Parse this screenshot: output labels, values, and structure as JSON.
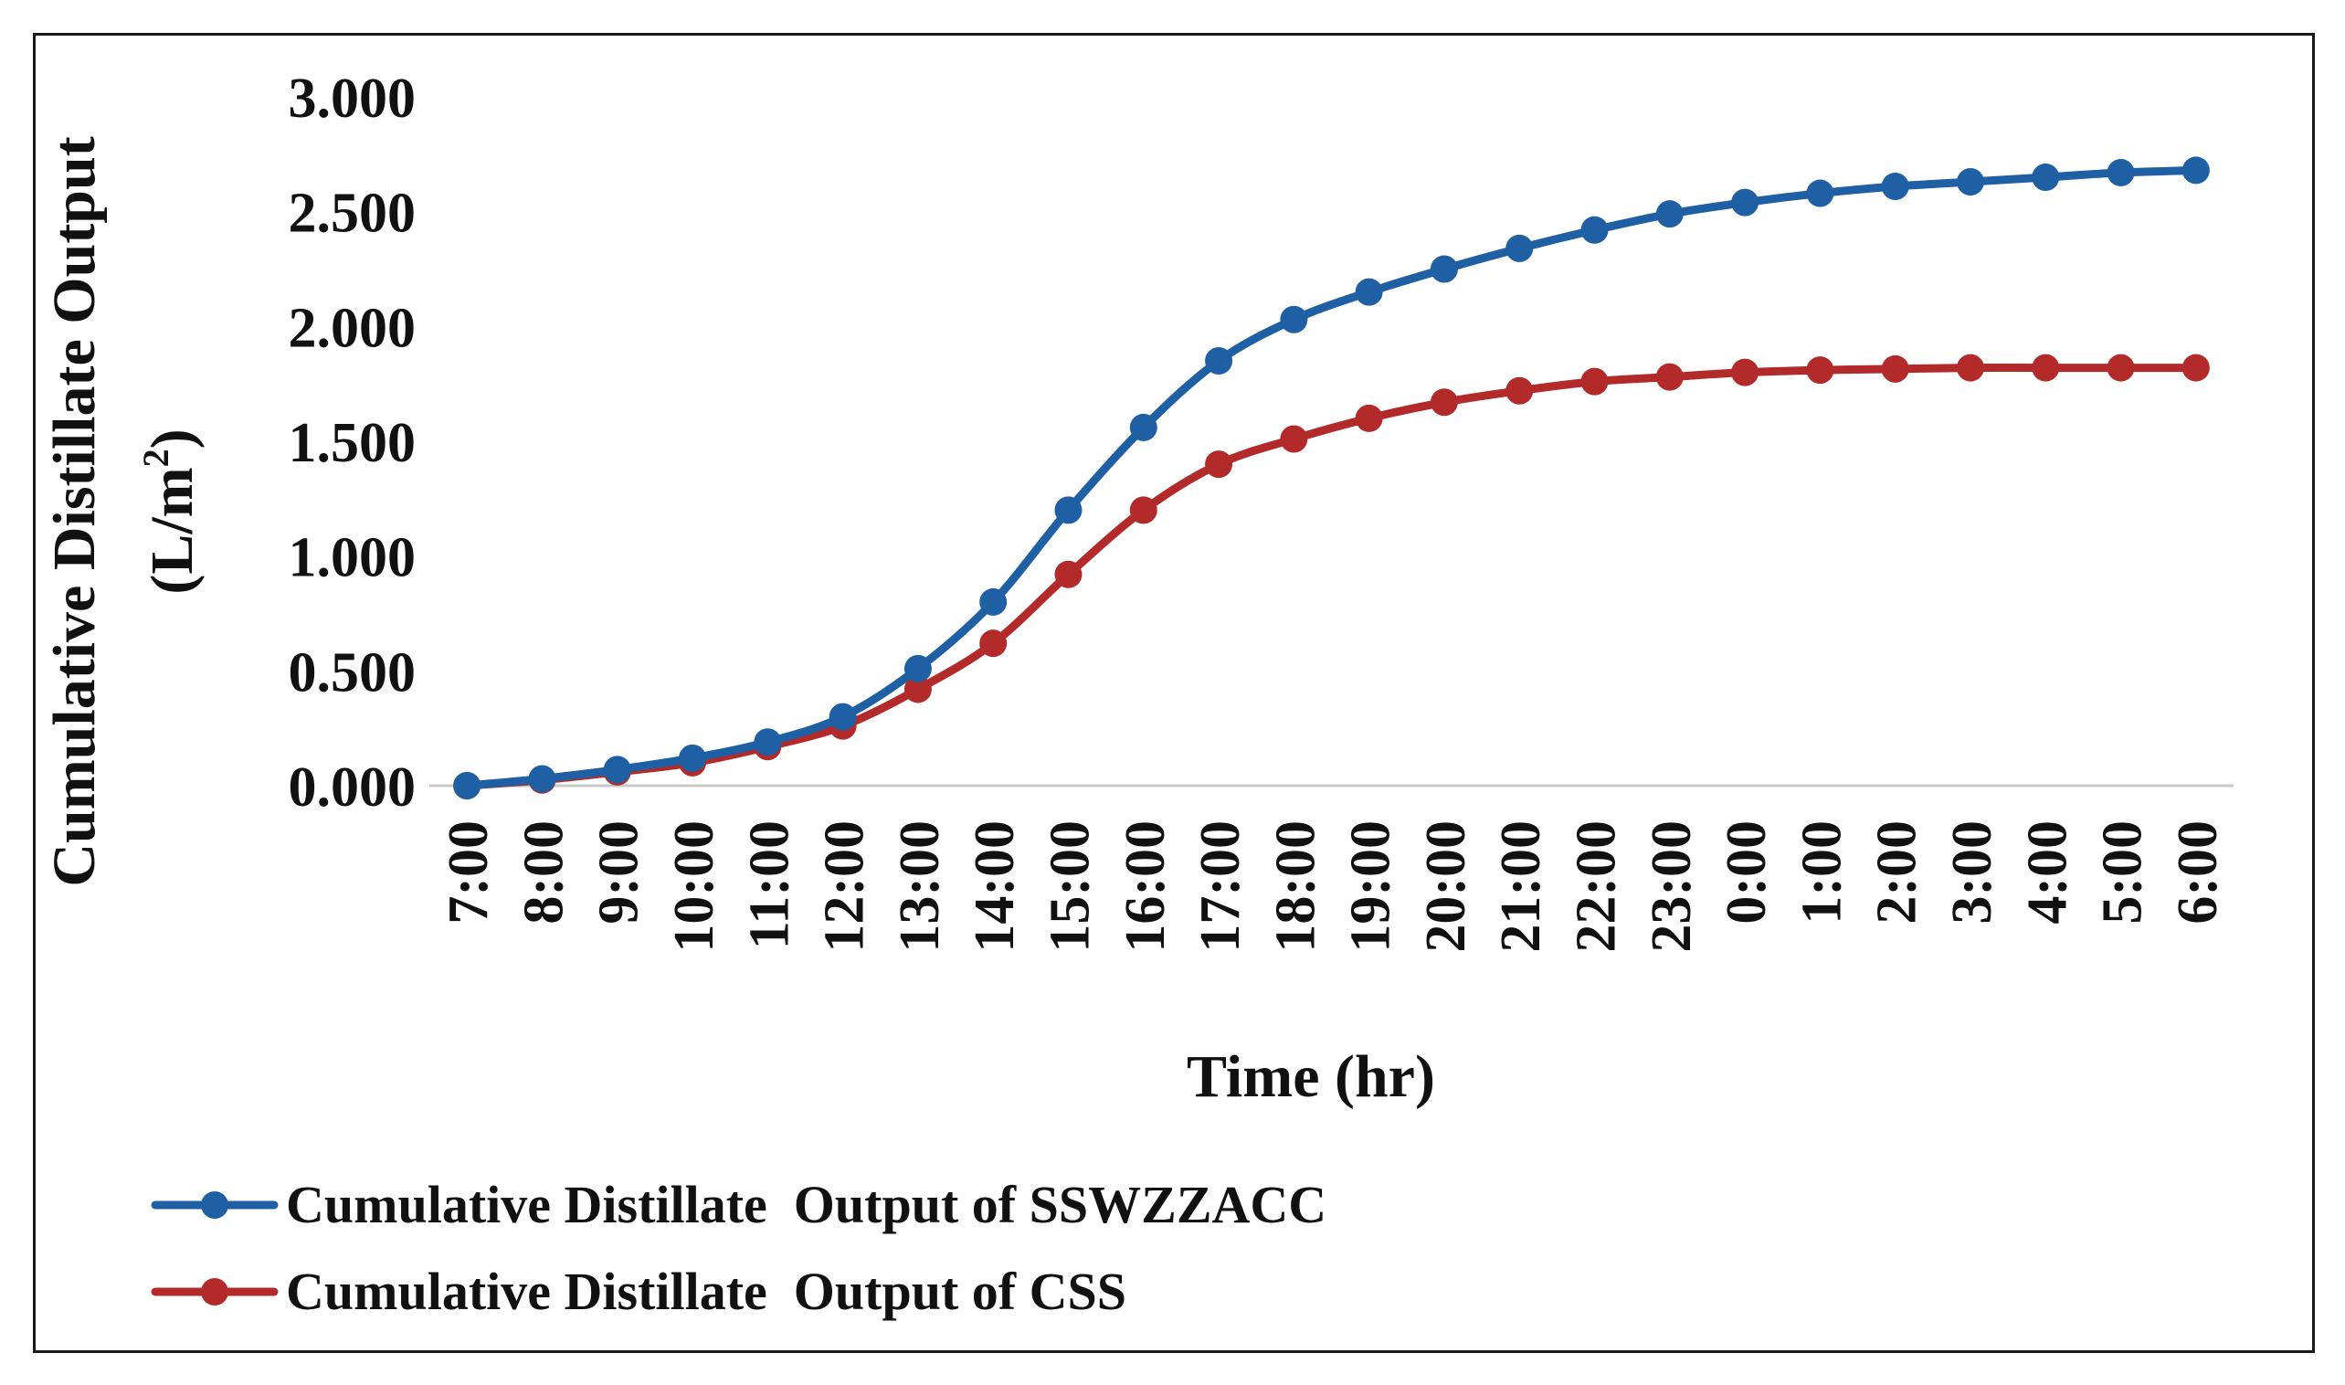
{
  "chart_data": {
    "type": "line",
    "title": "",
    "xlabel": "Time (hr)",
    "ylabel_line1": "Cumulative Distillate Output",
    "ylabel_line2_prefix": "(L/m",
    "ylabel_line2_sup": "2",
    "ylabel_line2_suffix": ")",
    "ylim": [
      0,
      3
    ],
    "yticks": [
      "0.000",
      "0.500",
      "1.000",
      "1.500",
      "2.000",
      "2.500",
      "3.000"
    ],
    "categories": [
      "7:00",
      "8:00",
      "9:00",
      "10:00",
      "11:00",
      "12:00",
      "13:00",
      "14:00",
      "15:00",
      "16:00",
      "17:00",
      "18:00",
      "19:00",
      "20:00",
      "21:00",
      "22:00",
      "23:00",
      "0:00",
      "1:00",
      "2:00",
      "3:00",
      "4:00",
      "5:00",
      "6:00"
    ],
    "series": [
      {
        "name": "Cumulative Distillate  Output of SSWZZACC",
        "color": "#1f5fa4",
        "values": [
          0.0,
          0.03,
          0.07,
          0.12,
          0.19,
          0.3,
          0.51,
          0.8,
          1.2,
          1.56,
          1.85,
          2.03,
          2.15,
          2.25,
          2.34,
          2.42,
          2.49,
          2.54,
          2.58,
          2.61,
          2.63,
          2.65,
          2.67,
          2.68
        ]
      },
      {
        "name": "Cumulative Distillate  Output of CSS",
        "color": "#b22a2a",
        "values": [
          0.0,
          0.025,
          0.06,
          0.1,
          0.17,
          0.26,
          0.42,
          0.62,
          0.92,
          1.2,
          1.4,
          1.51,
          1.6,
          1.67,
          1.72,
          1.76,
          1.78,
          1.8,
          1.81,
          1.815,
          1.82,
          1.82,
          1.82,
          1.82
        ]
      }
    ],
    "grid": false,
    "legend_position": "bottom-left"
  }
}
